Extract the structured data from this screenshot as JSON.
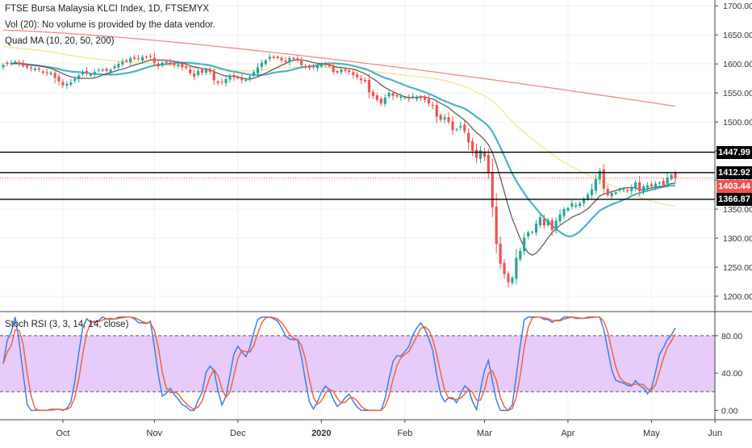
{
  "legend": {
    "title": "FTSE Bursa Malaysia KLCI Index, 1D, FTSEMYX",
    "volume": "Vol (20): No volume is provided by the data vendor.",
    "quad_ma": "Quad MA (10, 20, 50, 200)",
    "stoch_rsi": "Stoch RSI (3, 3, 14, 14, close)"
  },
  "colors": {
    "up": "#26a69a",
    "down": "#ef5350",
    "ma10": "#555555",
    "ma20": "#4bb4c2",
    "ma50": "#f7e48c",
    "ma200": "#f08a8a",
    "rsi_k": "#3d7fe0",
    "rsi_d": "#f0643c",
    "rsi_band": "#e6cbfb",
    "current_tag": "#ef5350",
    "level_tag": "#000000"
  },
  "price_axis": {
    "min": 1175,
    "max": 1710,
    "ticks": [
      1700,
      1650,
      1600,
      1550,
      1500,
      1450,
      1400,
      1350,
      1300,
      1250,
      1200
    ],
    "tick_labels": [
      "1700.00",
      "1650.00",
      "1600.00",
      "1550.00",
      "1500.00",
      "1450.00",
      "1400.00",
      "1350.00",
      "1300.00",
      "1250.00",
      "1200.00"
    ]
  },
  "horizontal_levels": [
    {
      "value": 1447.99,
      "label": "1447.99"
    },
    {
      "value": 1412.92,
      "label": "1412.92"
    },
    {
      "value": 1366.87,
      "label": "1366.87"
    }
  ],
  "current_price": {
    "value": 1403.44,
    "label": "1403.44"
  },
  "rsi_axis": {
    "min": -10,
    "max": 105,
    "ticks": [
      80,
      40,
      0
    ],
    "tick_labels": [
      "80.00",
      "40.00",
      "0.00"
    ],
    "band": [
      20,
      80
    ]
  },
  "time_axis": {
    "labels": [
      {
        "text": "Oct",
        "bar": 15,
        "bold": false
      },
      {
        "text": "Nov",
        "bar": 38,
        "bold": false
      },
      {
        "text": "Dec",
        "bar": 59,
        "bold": false
      },
      {
        "text": "2020",
        "bar": 80,
        "bold": true
      },
      {
        "text": "Feb",
        "bar": 101,
        "bold": false
      },
      {
        "text": "Mar",
        "bar": 121,
        "bold": false
      },
      {
        "text": "Apr",
        "bar": 142,
        "bold": false
      },
      {
        "text": "May",
        "bar": 163,
        "bold": false
      },
      {
        "text": "Jun",
        "bar": 179,
        "bold": false
      }
    ]
  },
  "chart_data": {
    "type": "candlestick",
    "title": "FTSE Bursa Malaysia KLCI Index, 1D, FTSEMYX",
    "ylim": [
      1175,
      1710
    ],
    "series": [
      {
        "name": "FTSE Bursa Malaysia KLCI Index",
        "values": [
          1598,
          1600,
          1602,
          1604,
          1600,
          1596,
          1594,
          1592,
          1592,
          1590,
          1585,
          1584,
          1585,
          1576,
          1570,
          1563,
          1566,
          1568,
          1574,
          1580,
          1586,
          1584,
          1582,
          1586,
          1590,
          1590,
          1588,
          1590,
          1596,
          1600,
          1604,
          1604,
          1610,
          1609,
          1608,
          1612,
          1611,
          1612,
          1602,
          1596,
          1602,
          1602,
          1600,
          1598,
          1599,
          1594,
          1593,
          1584,
          1578,
          1588,
          1585,
          1590,
          1586,
          1572,
          1567,
          1568,
          1574,
          1580,
          1577,
          1575,
          1572,
          1573,
          1578,
          1586,
          1594,
          1602,
          1606,
          1612,
          1610,
          1610,
          1606,
          1603,
          1610,
          1608,
          1606,
          1598,
          1595,
          1593,
          1594,
          1598,
          1600,
          1598,
          1596,
          1586,
          1585,
          1590,
          1588,
          1586,
          1581,
          1577,
          1572,
          1570,
          1551,
          1545,
          1538,
          1532,
          1542,
          1550,
          1545,
          1544,
          1544,
          1543,
          1540,
          1544,
          1542,
          1541,
          1538,
          1532,
          1528,
          1509,
          1504,
          1508,
          1500,
          1486,
          1488,
          1493,
          1484,
          1465,
          1450,
          1438,
          1451,
          1440,
          1413,
          1353,
          1290,
          1256,
          1238,
          1224,
          1232,
          1266,
          1278,
          1301,
          1310,
          1311,
          1325,
          1336,
          1322,
          1331,
          1314,
          1330,
          1341,
          1350,
          1352,
          1360,
          1357,
          1360,
          1368,
          1375,
          1384,
          1402,
          1416,
          1385,
          1374,
          1378,
          1379,
          1384,
          1385,
          1381,
          1388,
          1396,
          1381,
          1389,
          1391,
          1389,
          1394,
          1396,
          1391,
          1404,
          1409,
          1403
        ]
      },
      {
        "name": "MA10",
        "values": []
      },
      {
        "name": "MA20",
        "values": []
      },
      {
        "name": "MA50",
        "values": []
      },
      {
        "name": "MA200",
        "values": []
      },
      {
        "name": "Stoch RSI %K",
        "values": []
      },
      {
        "name": "Stoch RSI %D",
        "values": []
      }
    ],
    "horizontal_levels": [
      1447.99,
      1412.92,
      1366.87
    ],
    "current_price": 1403.44,
    "rsi_ylim": [
      0,
      100
    ],
    "rsi_band": [
      20,
      80
    ],
    "x_labels": [
      "Oct",
      "Nov",
      "Dec",
      "2020",
      "Feb",
      "Mar",
      "Apr",
      "May",
      "Jun"
    ],
    "grid": true
  }
}
